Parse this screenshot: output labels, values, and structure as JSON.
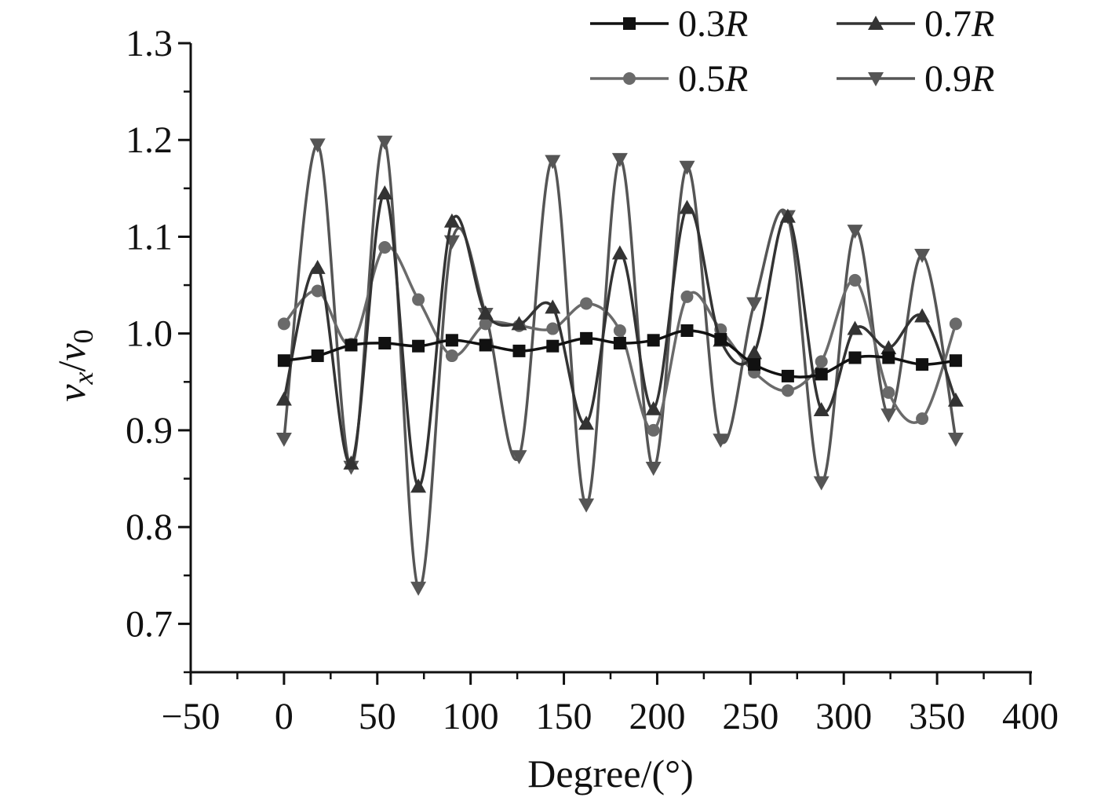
{
  "chart_data": {
    "type": "line",
    "xlabel": "Degree/(°)",
    "ylabel": {
      "v": "v",
      "sub_x": "x",
      "slash": "/",
      "v0": "v",
      "sub_0": "0"
    },
    "xlim": [
      -50,
      400
    ],
    "ylim": [
      0.65,
      1.3
    ],
    "y_axis_start": 0.7,
    "xticks": [
      -50,
      0,
      50,
      100,
      150,
      200,
      250,
      300,
      350,
      400
    ],
    "xtick_labels": [
      "−50",
      "0",
      "50",
      "100",
      "150",
      "200",
      "250",
      "300",
      "350",
      "400"
    ],
    "yticks": [
      0.7,
      0.8,
      0.9,
      1.0,
      1.1,
      1.2,
      1.3
    ],
    "ytick_labels": [
      "0.7",
      "0.8",
      "0.9",
      "1.0",
      "1.1",
      "1.2",
      "1.3"
    ],
    "grid": false,
    "legend_position": "top-right",
    "series": [
      {
        "name": "0.3R",
        "label_num": "0.3",
        "label_var": "R",
        "marker": "square",
        "color": "#111111",
        "x": [
          0,
          18,
          36,
          54,
          72,
          90,
          108,
          126,
          144,
          162,
          180,
          198,
          216,
          234,
          252,
          270,
          288,
          306,
          324,
          342,
          360
        ],
        "y": [
          0.972,
          0.977,
          0.988,
          0.99,
          0.987,
          0.993,
          0.988,
          0.982,
          0.987,
          0.995,
          0.99,
          0.993,
          1.003,
          0.994,
          0.968,
          0.956,
          0.958,
          0.975,
          0.975,
          0.968,
          0.972
        ]
      },
      {
        "name": "0.5R",
        "label_num": "0.5",
        "label_var": "R",
        "marker": "circle",
        "color": "#6a6a6a",
        "x": [
          0,
          18,
          36,
          54,
          72,
          90,
          108,
          126,
          144,
          162,
          180,
          198,
          216,
          234,
          252,
          270,
          288,
          306,
          324,
          342,
          360
        ],
        "y": [
          1.01,
          1.044,
          0.989,
          1.089,
          1.035,
          0.977,
          1.01,
          1.008,
          1.005,
          1.031,
          1.003,
          0.9,
          1.038,
          1.004,
          0.96,
          0.941,
          0.971,
          1.055,
          0.939,
          0.912,
          1.01
        ]
      },
      {
        "name": "0.7R",
        "label_num": "0.7",
        "label_var": "R",
        "marker": "triangle-up",
        "color": "#333333",
        "x": [
          0,
          18,
          36,
          54,
          72,
          90,
          108,
          126,
          144,
          162,
          180,
          198,
          216,
          234,
          252,
          270,
          288,
          306,
          324,
          342,
          360
        ],
        "y": [
          0.932,
          1.068,
          0.866,
          1.145,
          0.842,
          1.116,
          1.021,
          1.01,
          1.027,
          0.907,
          1.083,
          0.922,
          1.13,
          0.993,
          0.98,
          1.121,
          0.921,
          1.005,
          0.985,
          1.018,
          0.931
        ]
      },
      {
        "name": "0.9R",
        "label_num": "0.9",
        "label_var": "R",
        "marker": "triangle-down",
        "color": "#555555",
        "x": [
          0,
          18,
          36,
          54,
          72,
          90,
          108,
          126,
          144,
          162,
          180,
          198,
          216,
          234,
          252,
          270,
          288,
          306,
          324,
          342,
          360
        ],
        "y": [
          0.891,
          1.195,
          0.862,
          1.198,
          0.737,
          1.095,
          1.02,
          0.873,
          1.178,
          0.823,
          1.18,
          0.861,
          1.172,
          0.89,
          1.031,
          1.121,
          0.846,
          1.106,
          0.916,
          1.081,
          0.891
        ]
      }
    ]
  }
}
